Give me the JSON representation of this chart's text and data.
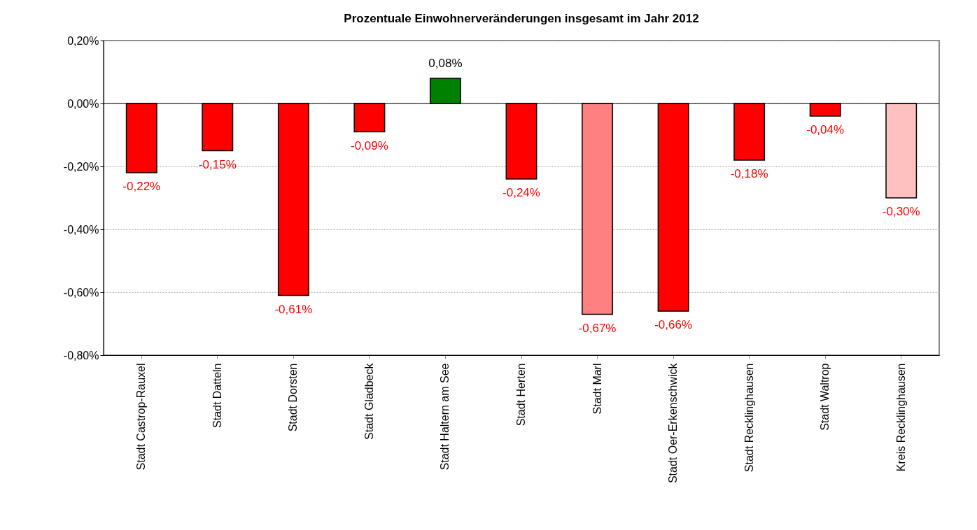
{
  "chart_data": {
    "type": "bar",
    "title": "Prozentuale Einwohnerveränderungen insgesamt im Jahr 2012",
    "categories": [
      "Stadt Castrop-Rauxel",
      "Stadt Datteln",
      "Stadt Dorsten",
      "Stadt Gladbeck",
      "Stadt Haltern am See",
      "Stadt Herten",
      "Stadt Marl",
      "Stadt Oer-Erkenschwick",
      "Stadt Recklinghausen",
      "Stadt Waltrop",
      "Kreis Recklinghausen"
    ],
    "values": [
      -0.22,
      -0.15,
      -0.61,
      -0.09,
      0.08,
      -0.24,
      -0.67,
      -0.66,
      -0.18,
      -0.04,
      -0.3
    ],
    "value_labels": [
      "-0,22%",
      "-0,15%",
      "-0,61%",
      "-0,09%",
      "0,08%",
      "-0,24%",
      "-0,67%",
      "-0,66%",
      "-0,18%",
      "-0,04%",
      "-0,30%"
    ],
    "colors": [
      "#ff0000",
      "#ff0000",
      "#ff0000",
      "#ff0000",
      "#008000",
      "#ff0000",
      "#ff8080",
      "#ff0000",
      "#ff0000",
      "#ff0000",
      "#ffc0c0"
    ],
    "ylim": [
      -0.8,
      0.2
    ],
    "yticks": [
      {
        "value": 0.2,
        "label": "0,20%"
      },
      {
        "value": 0,
        "label": "0,00%"
      },
      {
        "value": -0.2,
        "label": "-0,20%"
      },
      {
        "value": -0.4,
        "label": "-0,40%"
      },
      {
        "value": -0.6,
        "label": "-0,60%"
      },
      {
        "value": -0.8,
        "label": "-0,80%"
      }
    ],
    "grid": "y",
    "ref_lines": [
      {
        "axis": "y",
        "value": 0,
        "color": "#000000"
      }
    ]
  }
}
